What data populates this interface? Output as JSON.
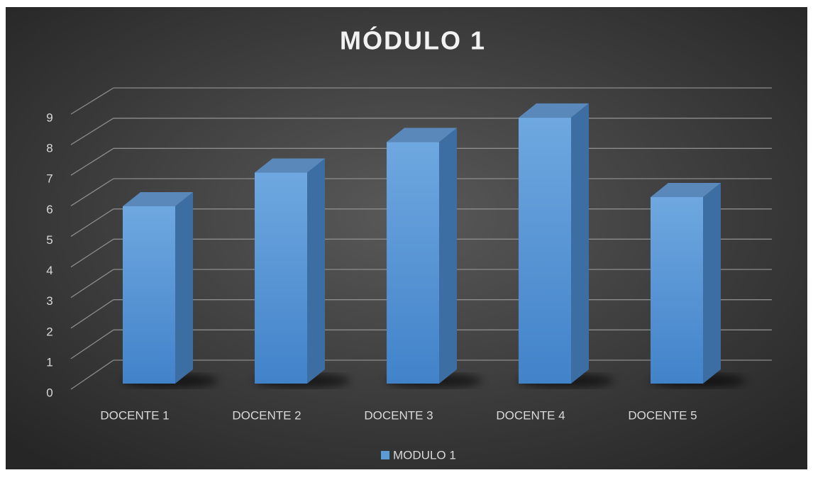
{
  "chart_data": {
    "type": "bar3d",
    "title": "MÓDULO 1",
    "categories": [
      "DOCENTE 1",
      "DOCENTE 2",
      "DOCENTE 3",
      "DOCENTE 4",
      "DOCENTE 5"
    ],
    "series": [
      {
        "name": "MODULO 1",
        "color": "#5b9bd5",
        "values": [
          5.8,
          6.9,
          7.9,
          8.7,
          6.1
        ]
      }
    ],
    "ylim": [
      0,
      9
    ],
    "yticks": [
      0,
      1,
      2,
      3,
      4,
      5,
      6,
      7,
      8,
      9
    ],
    "grid": true,
    "legend": "bottom"
  }
}
